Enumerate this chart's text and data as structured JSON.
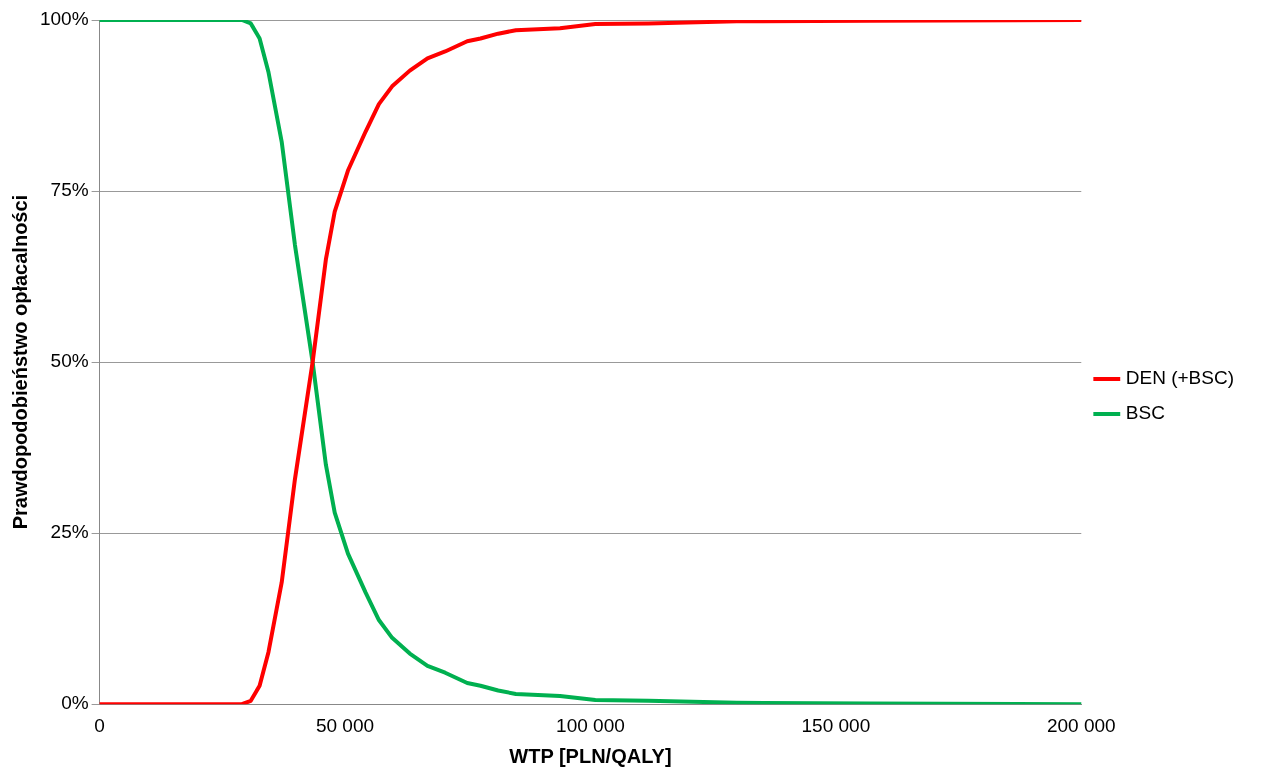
{
  "chart_data": {
    "type": "line",
    "xlabel": "WTP [PLN/QALY]",
    "ylabel": "Prawdopodobieństwo opłacalności",
    "xlim": [
      0,
      200000
    ],
    "xticks": [
      0,
      {
        "value": 50000,
        "label": "50 000"
      },
      {
        "value": 100000,
        "label": "100 000"
      },
      {
        "value": 150000,
        "label": "150 000"
      },
      {
        "value": 200000,
        "label": "200 000"
      }
    ],
    "ylim": [
      0,
      100
    ],
    "yticks": [
      {
        "value": 0,
        "label": "0%"
      },
      {
        "value": 25,
        "label": "25%"
      },
      {
        "value": 50,
        "label": "50%"
      },
      {
        "value": 75,
        "label": "75%"
      },
      {
        "value": 100,
        "label": "100%"
      }
    ],
    "grid": "y",
    "legend": "right",
    "marker": "none",
    "line_style": "solid",
    "x": [
      0,
      29000,
      30800,
      32600,
      34400,
      37100,
      39800,
      43400,
      46100,
      47900,
      50600,
      54200,
      56900,
      59600,
      63200,
      66800,
      70400,
      74900,
      77600,
      81200,
      84800,
      93800,
      101000,
      111800,
      129800,
      156800,
      200000
    ],
    "series": [
      {
        "name": "DEN (+BSC)",
        "color": "#ff0000",
        "values": [
          0,
          0,
          0.5,
          2.7,
          7.6,
          17.8,
          32.9,
          50,
          65,
          72,
          78,
          83.7,
          87.7,
          90.3,
          92.6,
          94.4,
          95.4,
          96.9,
          97.3,
          98,
          98.5,
          98.8,
          99.4,
          99.5,
          99.8,
          99.9,
          100
        ]
      },
      {
        "name": "BSC",
        "color": "#00b050",
        "values": [
          100,
          100,
          99.5,
          97.3,
          92.4,
          82.2,
          67.1,
          50,
          35,
          28,
          22,
          16.3,
          12.3,
          9.7,
          7.4,
          5.6,
          4.6,
          3.1,
          2.7,
          2,
          1.5,
          1.2,
          0.6,
          0.5,
          0.2,
          0.1,
          0
        ]
      }
    ]
  }
}
